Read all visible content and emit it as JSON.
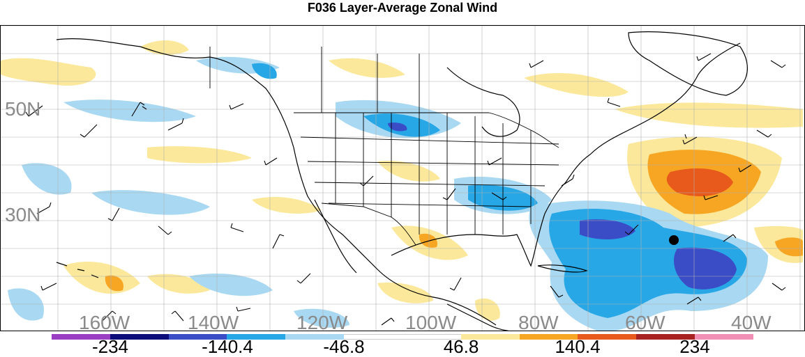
{
  "title": "F036 Layer-Average Zonal Wind",
  "map": {
    "lat_labels": [
      "50N",
      "30N"
    ],
    "lon_labels": [
      "160W",
      "140W",
      "120W",
      "100W",
      "80W",
      "60W",
      "40W"
    ]
  },
  "colorbar": {
    "colors": [
      "#9a3fc4",
      "#0c0c7a",
      "#3a4cc6",
      "#27a7e6",
      "#a9d8f2",
      "#ffffff",
      "#ffffff",
      "#fbe89a",
      "#f6a623",
      "#e85a1b",
      "#a82222",
      "#f28fb4"
    ],
    "labels": [
      "-234",
      "-140.4",
      "-46.8",
      "46.8",
      "140.4",
      "234"
    ]
  }
}
